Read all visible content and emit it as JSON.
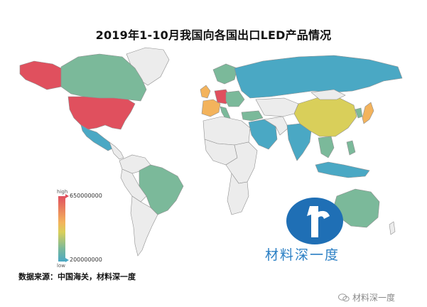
{
  "title": "2019年1-10月我国向各国出口LED产品情况",
  "legend": {
    "high_label": "high",
    "low_label": "low",
    "max_value": "650000000",
    "min_value": "200000000"
  },
  "source": "数据来源：中国海关，材料深一度",
  "logo_text": "材料深一度",
  "watermark": "材料深一度",
  "colors": {
    "high": "#e0505e",
    "orange": "#f3b35c",
    "mid": "#d9cf5a",
    "green": "#7bb99a",
    "low": "#4aa8c4",
    "nodata": "#ececec",
    "border": "#9a9a9a",
    "logo_blue": "#1f6fb5"
  },
  "icons": [
    "logo-icon",
    "wechat-icon"
  ]
}
